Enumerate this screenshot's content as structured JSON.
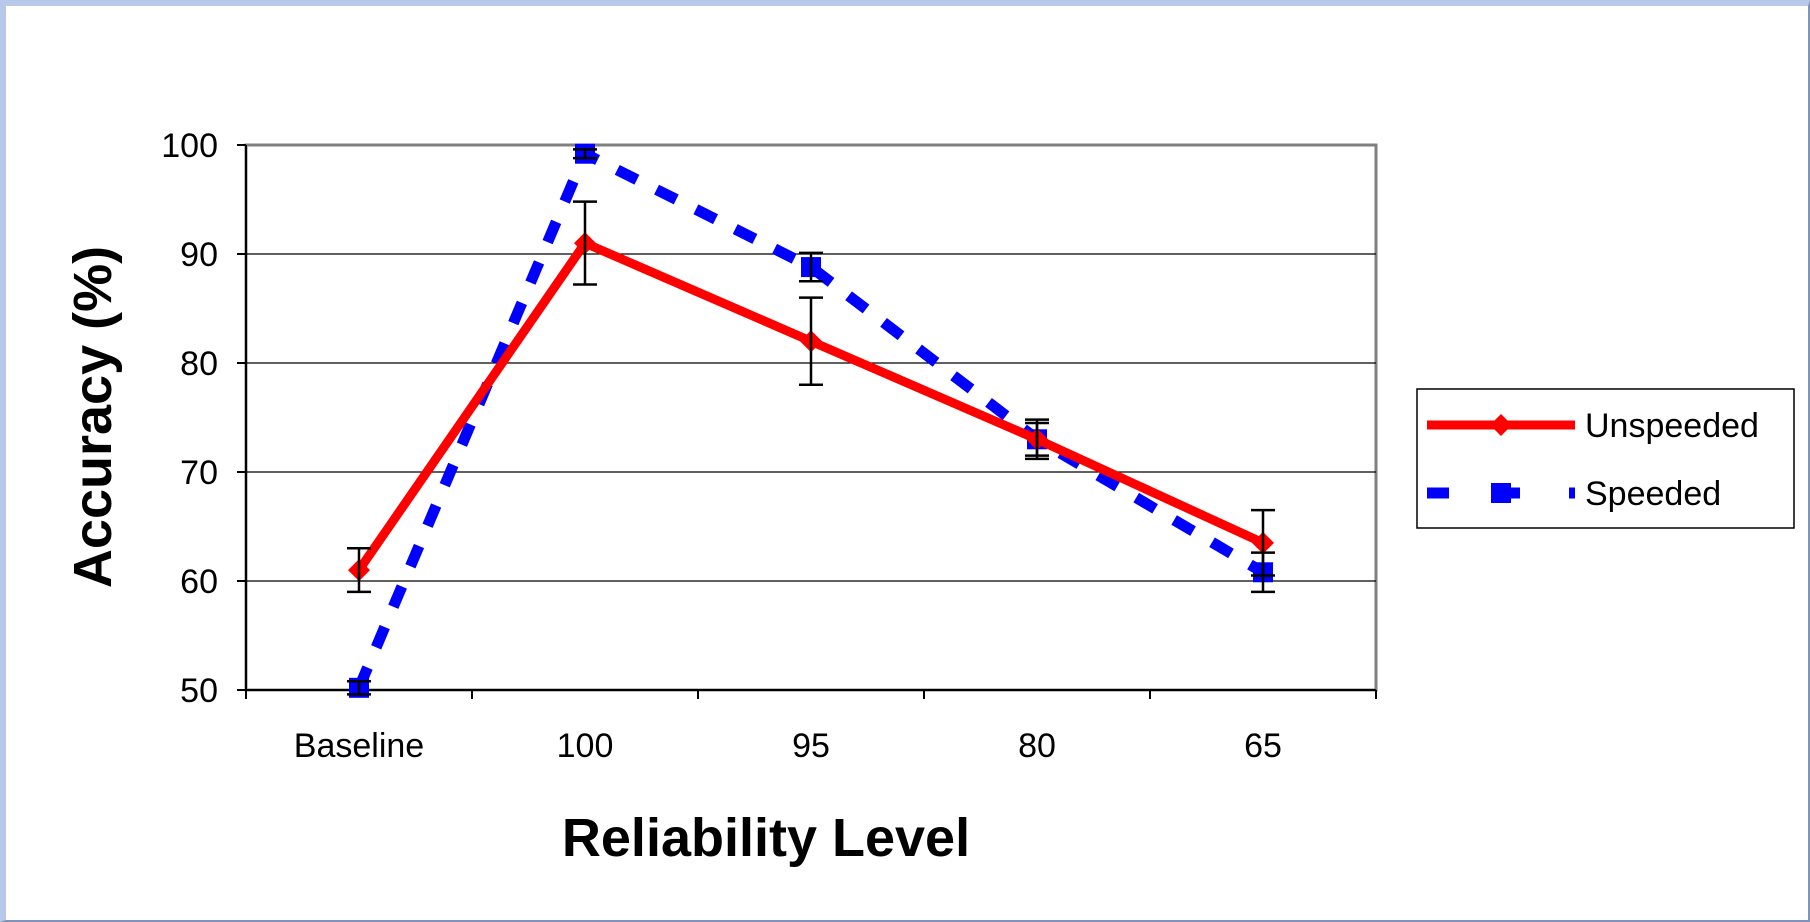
{
  "chart_data": {
    "type": "line",
    "xlabel": "Reliability Level",
    "ylabel": "Accuracy (%)",
    "categories": [
      "Baseline",
      "100",
      "95",
      "80",
      "65"
    ],
    "ylim": [
      50,
      100
    ],
    "yticks": [
      50,
      60,
      70,
      80,
      90,
      100
    ],
    "grid": true,
    "legend_position": "right",
    "series": [
      {
        "name": "Unspeeded",
        "values": [
          61,
          91,
          82,
          73,
          63.5
        ],
        "errors": [
          2,
          3.8,
          4,
          1.8,
          3
        ],
        "color": "#ff0000",
        "marker": "diamond",
        "line_style": "solid"
      },
      {
        "name": "Speeded",
        "values": [
          50.2,
          99.2,
          88.8,
          73,
          60.8
        ],
        "errors": [
          0.6,
          0.4,
          1.3,
          1.5,
          1.8
        ],
        "color": "#0000ff",
        "marker": "square",
        "line_style": "dashed"
      }
    ]
  }
}
